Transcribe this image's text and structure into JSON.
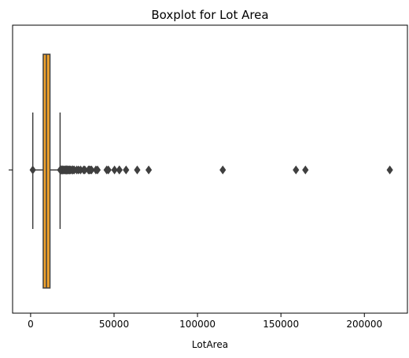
{
  "chart_data": {
    "type": "box",
    "title": "Boxplot for Lot Area",
    "xlabel": "LotArea",
    "ylabel": "",
    "xlim": [
      -10800,
      225800
    ],
    "x_ticks": [
      0,
      50000,
      100000,
      150000,
      200000
    ],
    "x_tick_labels": [
      "0",
      "50000",
      "100000",
      "150000",
      "200000"
    ],
    "box_color": "#f0a22b",
    "edge_color": "#3f3f3f",
    "stats": {
      "whisker_low": 1300,
      "q1": 7554,
      "median": 9478,
      "q3": 11602,
      "whisker_high": 17671
    },
    "outliers": [
      1300,
      17755,
      18000,
      18386,
      18450,
      18890,
      19138,
      19296,
      19690,
      20000,
      20544,
      20896,
      21000,
      21286,
      21384,
      21695,
      21750,
      21872,
      21930,
      22420,
      22950,
      23257,
      23595,
      24090,
      25000,
      25095,
      25286,
      25419,
      26142,
      27650,
      28698,
      29959,
      31770,
      32463,
      34650,
      35133,
      35760,
      36500,
      39104,
      40094,
      45600,
      46589,
      50271,
      53107,
      53227,
      57200,
      63887,
      70761,
      115149,
      159000,
      164660,
      215245
    ]
  }
}
